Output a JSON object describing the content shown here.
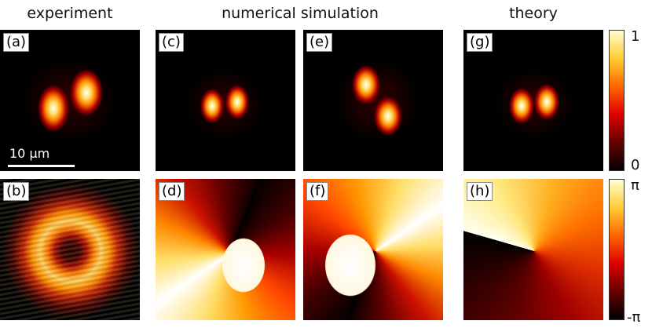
{
  "headers": [
    "experiment",
    "numerical simulation",
    "theory"
  ],
  "panels": [
    "(a)",
    "(b)",
    "(c)",
    "(d)",
    "(e)",
    "(f)",
    "(g)",
    "(h)"
  ],
  "scale_bar": "10 μm",
  "colorbars": {
    "intensity": [
      "1",
      "0"
    ],
    "phase": [
      "π",
      "-π"
    ]
  }
}
